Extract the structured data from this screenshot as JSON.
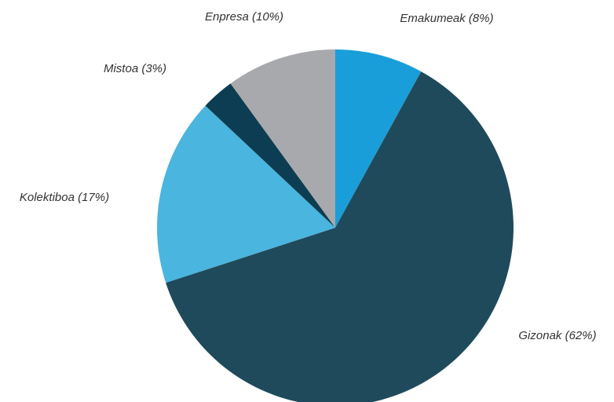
{
  "chart_data": {
    "type": "pie",
    "categories": [
      "Emakumeak (8%)",
      "Gizonak (62%)",
      "Kolektiboa (17%)",
      "Mistoa (3%)",
      "Enpresa (10%)"
    ],
    "values": [
      8,
      62,
      17,
      3,
      10
    ],
    "colors": [
      "#1a9ed9",
      "#1f4a5c",
      "#4ab5de",
      "#0d3d52",
      "#a7a9ac"
    ]
  }
}
